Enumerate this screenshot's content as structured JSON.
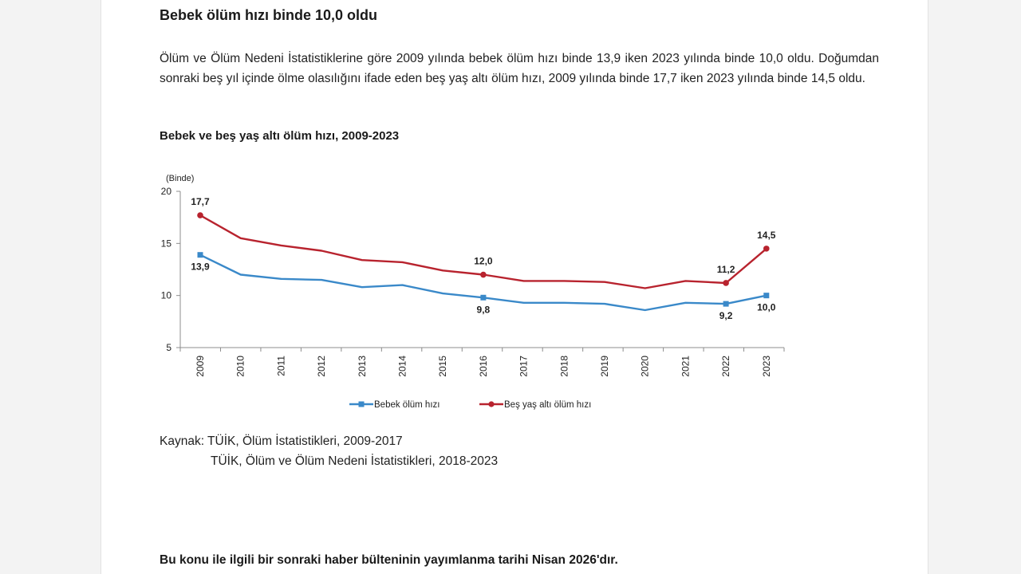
{
  "headline": "Bebek ölüm hızı binde 10,0 oldu",
  "paragraph": "Ölüm ve Ölüm Nedeni İstatistiklerine göre 2009 yılında bebek ölüm hızı binde 13,9 iken 2023 yılında binde 10,0 oldu. Doğumdan sonraki beş yıl içinde ölme olasılığını ifade eden beş yaş altı ölüm hızı, 2009 yılında binde 17,7 iken 2023 yılında binde 14,5 oldu.",
  "chart_title": "Bebek ve beş yaş altı ölüm hızı, 2009-2023",
  "chart_data": {
    "type": "line",
    "title": "Bebek ve beş yaş altı ölüm hızı, 2009-2023",
    "unit_label": "(Binde)",
    "xlabel": "",
    "ylabel": "",
    "ylim": [
      5,
      20
    ],
    "yticks": [
      5,
      10,
      15,
      20
    ],
    "grid": false,
    "legend_position": "bottom",
    "categories": [
      "2009",
      "2010",
      "2011",
      "2012",
      "2013",
      "2014",
      "2015",
      "2016",
      "2017",
      "2018",
      "2019",
      "2020",
      "2021",
      "2022",
      "2023"
    ],
    "series": [
      {
        "name": "Bebek ölüm hızı",
        "color": "#3a89c9",
        "marker": "square",
        "values": [
          13.9,
          12.0,
          11.6,
          11.5,
          10.8,
          11.0,
          10.2,
          9.8,
          9.3,
          9.3,
          9.2,
          8.6,
          9.3,
          9.2,
          10.0
        ],
        "labels": [
          {
            "index": 0,
            "text": "13,9"
          },
          {
            "index": 7,
            "text": "9,8"
          },
          {
            "index": 13,
            "text": "9,2"
          },
          {
            "index": 14,
            "text": "10,0"
          }
        ]
      },
      {
        "name": "Beş yaş altı ölüm hızı",
        "color": "#b8232e",
        "marker": "circle",
        "values": [
          17.7,
          15.5,
          14.8,
          14.3,
          13.4,
          13.2,
          12.4,
          12.0,
          11.4,
          11.4,
          11.3,
          10.7,
          11.4,
          11.2,
          14.5
        ],
        "labels": [
          {
            "index": 0,
            "text": "17,7"
          },
          {
            "index": 7,
            "text": "12,0"
          },
          {
            "index": 13,
            "text": "11,2"
          },
          {
            "index": 14,
            "text": "14,5"
          }
        ]
      }
    ]
  },
  "source": {
    "line1": "Kaynak: TÜİK, Ölüm İstatistikleri, 2009-2017",
    "line2": "TÜİK, Ölüm ve Ölüm Nedeni İstatistikleri, 2018-2023"
  },
  "footer": "Bu konu ile ilgili bir sonraki haber bülteninin yayımlanma tarihi Nisan 2026'dır."
}
